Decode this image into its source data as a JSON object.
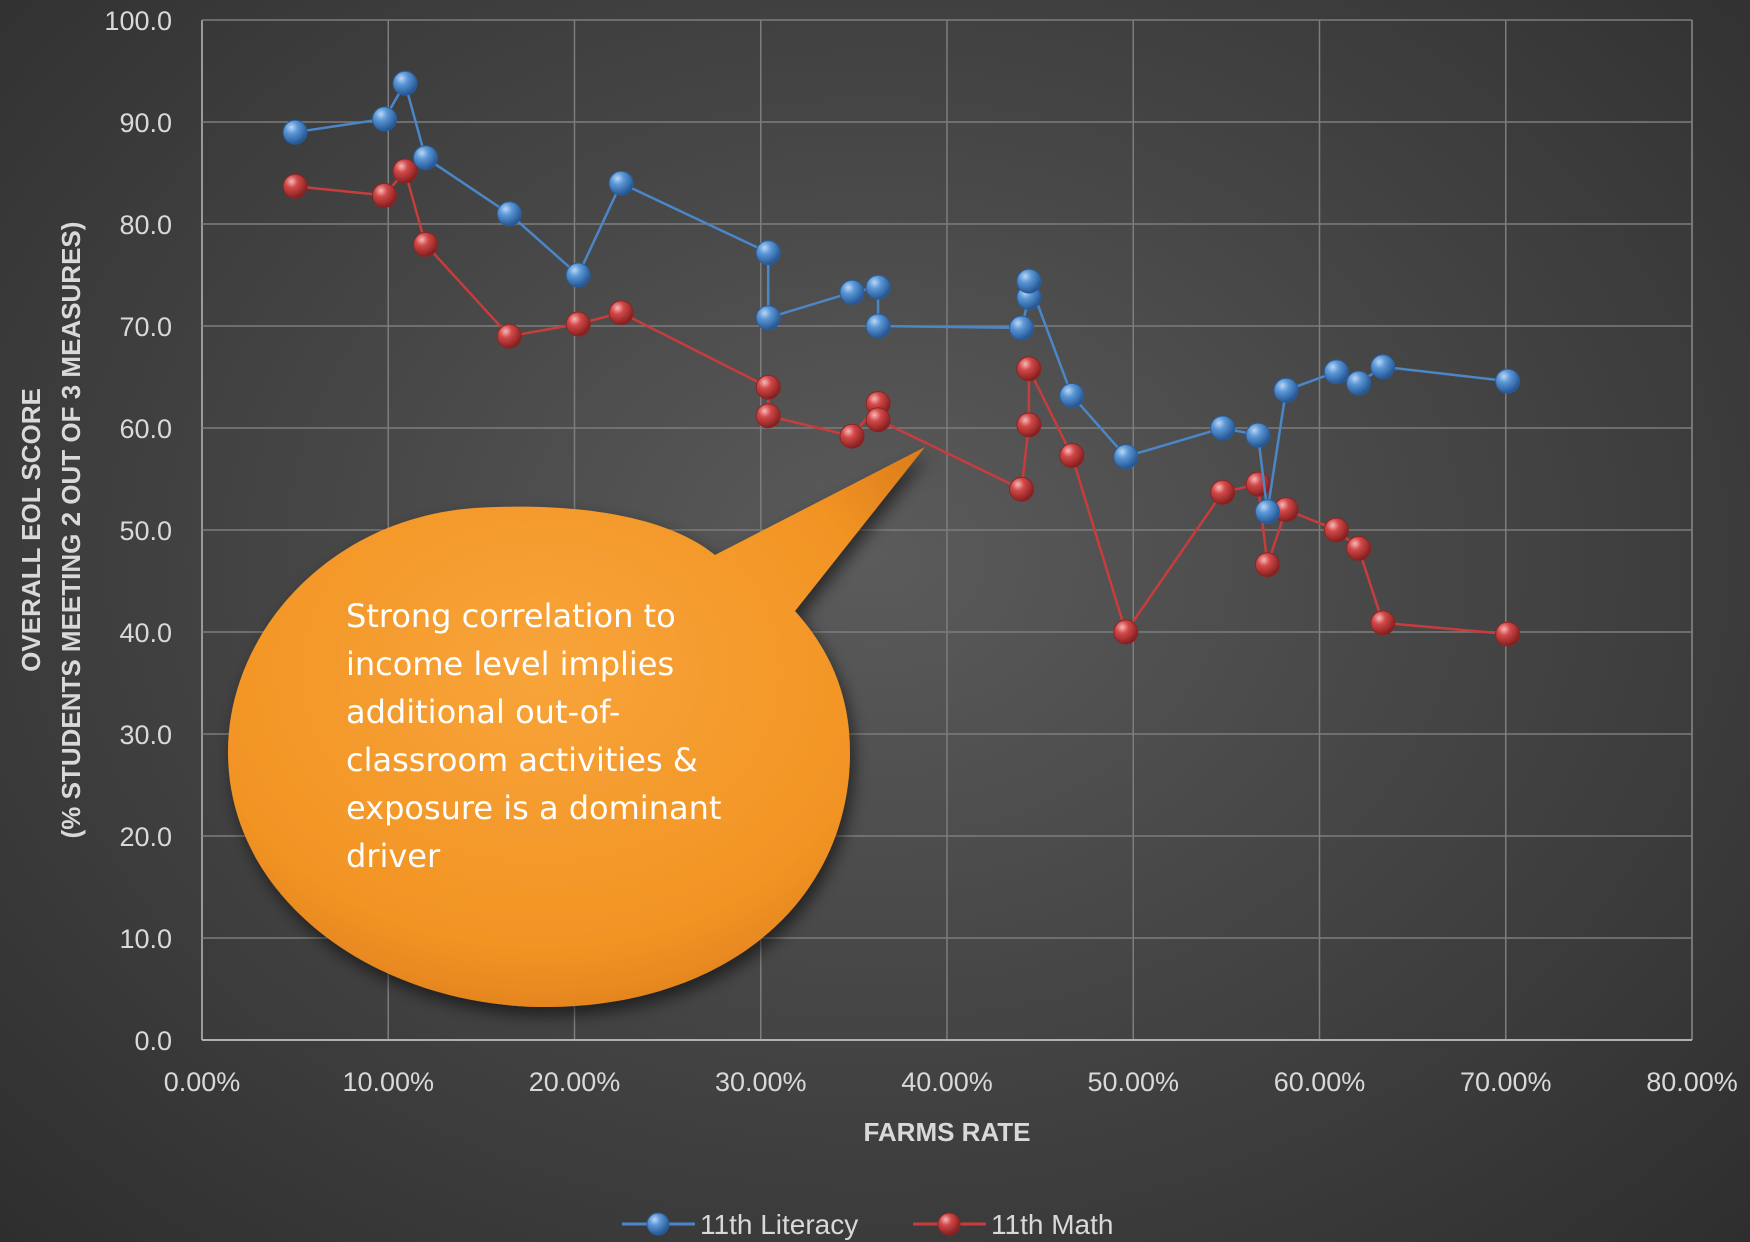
{
  "chart_data": {
    "type": "line",
    "xlabel": "FARMS RATE",
    "ylabel": [
      "OVERALL EOL SCORE",
      "(% STUDENTS MEETING 2 OUT OF 3 MEASURES)"
    ],
    "xlim": [
      0,
      80
    ],
    "ylim": [
      0,
      100
    ],
    "x_ticks": [
      "0.00%",
      "10.00%",
      "20.00%",
      "30.00%",
      "40.00%",
      "50.00%",
      "60.00%",
      "70.00%",
      "80.00%"
    ],
    "y_ticks": [
      "0.0",
      "10.0",
      "20.0",
      "30.0",
      "40.0",
      "50.0",
      "60.0",
      "70.0",
      "80.0",
      "90.0",
      "100.0"
    ],
    "grid": true,
    "legend_position": "bottom",
    "series": [
      {
        "name": "11th Literacy",
        "color": "#4a86c8",
        "points": [
          [
            5.0,
            89.0
          ],
          [
            9.8,
            90.3
          ],
          [
            10.9,
            93.8
          ],
          [
            12.0,
            86.5
          ],
          [
            16.5,
            81.0
          ],
          [
            20.2,
            75.0
          ],
          [
            22.5,
            84.0
          ],
          [
            30.4,
            77.2
          ],
          [
            30.4,
            70.8
          ],
          [
            34.9,
            73.3
          ],
          [
            36.3,
            73.8
          ],
          [
            36.3,
            70.0
          ],
          [
            44.0,
            69.8
          ],
          [
            44.4,
            72.8
          ],
          [
            44.4,
            74.4
          ],
          [
            46.7,
            63.2
          ],
          [
            49.6,
            57.2
          ],
          [
            54.8,
            60.0
          ],
          [
            56.7,
            59.3
          ],
          [
            57.2,
            51.8
          ],
          [
            58.2,
            63.7
          ],
          [
            60.9,
            65.5
          ],
          [
            62.1,
            64.4
          ],
          [
            63.4,
            66.0
          ],
          [
            70.1,
            64.6
          ]
        ]
      },
      {
        "name": "11th Math",
        "color": "#c83c3c",
        "points": [
          [
            5.0,
            83.7
          ],
          [
            9.8,
            82.8
          ],
          [
            10.9,
            85.2
          ],
          [
            12.0,
            78.0
          ],
          [
            16.5,
            69.0
          ],
          [
            20.2,
            70.2
          ],
          [
            22.5,
            71.3
          ],
          [
            30.4,
            64.0
          ],
          [
            30.4,
            61.2
          ],
          [
            34.9,
            59.2
          ],
          [
            36.3,
            62.4
          ],
          [
            36.3,
            60.8
          ],
          [
            44.0,
            54.0
          ],
          [
            44.4,
            60.3
          ],
          [
            44.4,
            65.8
          ],
          [
            46.7,
            57.3
          ],
          [
            49.6,
            40.0
          ],
          [
            54.8,
            53.7
          ],
          [
            56.7,
            54.5
          ],
          [
            57.2,
            46.6
          ],
          [
            58.2,
            52.0
          ],
          [
            60.9,
            50.0
          ],
          [
            62.1,
            48.2
          ],
          [
            63.4,
            40.9
          ],
          [
            70.1,
            39.8
          ]
        ]
      }
    ],
    "annotation": {
      "lines": [
        "Strong correlation to",
        "income level implies",
        "additional out-of-",
        "classroom activities &",
        "exposure is a dominant",
        "driver"
      ],
      "color": "#f0921e"
    }
  }
}
